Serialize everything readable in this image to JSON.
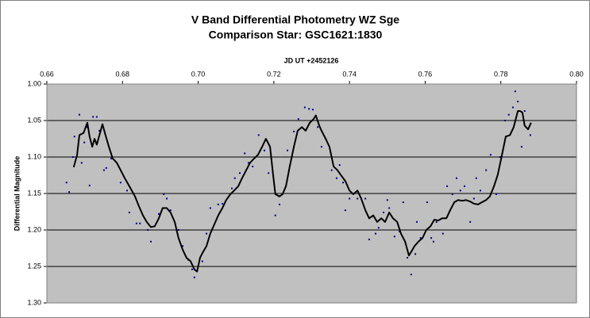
{
  "chart_data": {
    "type": "scatter",
    "title": "V Band Differential Photometry WZ Sge",
    "subtitle": "Comparison Star: GSC1621:1830",
    "x_label": "JD UT +2452126",
    "y_label": "Differential Magnitude",
    "xlim": [
      0.66,
      0.8
    ],
    "xticks": [
      0.66,
      0.68,
      {
        "value": 0.7,
        "label": "0.70"
      },
      0.72,
      0.74,
      0.76,
      0.78,
      {
        "value": 0.8,
        "label": "0.80"
      }
    ],
    "x_axis_position": "top",
    "ylim": [
      1.0,
      1.3
    ],
    "y_reversed": true,
    "yticks": [
      {
        "value": 1.0,
        "label": "1.00"
      },
      1.05,
      {
        "value": 1.1,
        "label": "1.10"
      },
      1.15,
      {
        "value": 1.2,
        "label": "1.20"
      },
      1.25,
      {
        "value": 1.3,
        "label": "1.30"
      }
    ],
    "grid": true,
    "plot_background": "#c0c0c0",
    "series": [
      {
        "mode": "markers",
        "color": "#000080",
        "x": [
          0.6652,
          0.6659,
          0.6669,
          0.6673,
          0.6686,
          0.6692,
          0.6699,
          0.6705,
          0.6713,
          0.6722,
          0.6732,
          0.6739,
          0.6751,
          0.6757,
          0.677,
          0.6795,
          0.6812,
          0.6818,
          0.6837,
          0.6846,
          0.6867,
          0.6875,
          0.6896,
          0.6909,
          0.6917,
          0.6927,
          0.6948,
          0.6959,
          0.6974,
          0.6984,
          0.699,
          0.7011,
          0.7022,
          0.7032,
          0.7053,
          0.7064,
          0.7089,
          0.7097,
          0.711,
          0.7123,
          0.7133,
          0.7144,
          0.716,
          0.7175,
          0.7186,
          0.7204,
          0.7215,
          0.7236,
          0.7253,
          0.7265,
          0.7282,
          0.7293,
          0.7303,
          0.7316,
          0.7326,
          0.7337,
          0.7353,
          0.7366,
          0.7374,
          0.7383,
          0.7389,
          0.74,
          0.7421,
          0.7442,
          0.7452,
          0.7469,
          0.7477,
          0.749,
          0.75,
          0.7505,
          0.7519,
          0.7532,
          0.7542,
          0.7553,
          0.7563,
          0.7574,
          0.7578,
          0.7588,
          0.7605,
          0.7616,
          0.7622,
          0.763,
          0.7647,
          0.7658,
          0.7666,
          0.7672,
          0.7683,
          0.7693,
          0.7704,
          0.7719,
          0.7729,
          0.7735,
          0.7746,
          0.7761,
          0.7773,
          0.7788,
          0.7798,
          0.7811,
          0.7821,
          0.7832,
          0.7838,
          0.7845,
          0.7855,
          0.7863,
          0.7878
        ],
        "values": [
          1.135,
          1.148,
          1.1,
          1.072,
          1.042,
          1.108,
          1.08,
          1.059,
          1.139,
          1.045,
          1.045,
          1.064,
          1.118,
          1.115,
          1.102,
          1.135,
          1.146,
          1.176,
          1.191,
          1.191,
          1.2,
          1.216,
          1.178,
          1.151,
          1.157,
          1.173,
          1.2,
          1.222,
          1.241,
          1.254,
          1.265,
          1.243,
          1.205,
          1.17,
          1.165,
          1.164,
          1.143,
          1.129,
          1.122,
          1.095,
          1.108,
          1.113,
          1.07,
          1.091,
          1.122,
          1.18,
          1.165,
          1.091,
          1.065,
          1.048,
          1.032,
          1.034,
          1.035,
          1.059,
          1.086,
          1.075,
          1.118,
          1.129,
          1.111,
          1.135,
          1.173,
          1.157,
          1.157,
          1.157,
          1.213,
          1.205,
          1.197,
          1.176,
          1.159,
          1.17,
          1.209,
          1.202,
          1.162,
          1.238,
          1.261,
          1.233,
          1.189,
          1.211,
          1.162,
          1.211,
          1.216,
          1.189,
          1.205,
          1.14,
          1.173,
          1.151,
          1.129,
          1.146,
          1.14,
          1.189,
          1.157,
          1.129,
          1.146,
          1.118,
          1.097,
          1.151,
          1.1,
          1.05,
          1.042,
          1.032,
          1.01,
          1.024,
          1.086,
          1.037,
          1.07
        ]
      },
      {
        "mode": "line",
        "color": "#000000",
        "x": [
          0.6671,
          0.668,
          0.6686,
          0.6697,
          0.6707,
          0.6713,
          0.672,
          0.6726,
          0.6732,
          0.6739,
          0.6747,
          0.6755,
          0.6764,
          0.6774,
          0.6785,
          0.6795,
          0.6806,
          0.6818,
          0.6833,
          0.6843,
          0.6854,
          0.6864,
          0.6875,
          0.6885,
          0.6896,
          0.6906,
          0.6917,
          0.6927,
          0.6938,
          0.6948,
          0.6959,
          0.6969,
          0.698,
          0.699,
          0.6997,
          0.7005,
          0.7013,
          0.7022,
          0.7032,
          0.7043,
          0.7053,
          0.7064,
          0.7074,
          0.7085,
          0.7095,
          0.7106,
          0.7116,
          0.7127,
          0.7137,
          0.7148,
          0.7158,
          0.7169,
          0.7179,
          0.719,
          0.7198,
          0.7204,
          0.7215,
          0.7223,
          0.7232,
          0.7242,
          0.7253,
          0.7263,
          0.7274,
          0.7284,
          0.7295,
          0.7305,
          0.7311,
          0.732,
          0.7326,
          0.7337,
          0.7347,
          0.7358,
          0.7368,
          0.7379,
          0.7389,
          0.74,
          0.741,
          0.7421,
          0.7431,
          0.7442,
          0.7452,
          0.7463,
          0.7473,
          0.7484,
          0.7494,
          0.7505,
          0.7515,
          0.7526,
          0.7536,
          0.7547,
          0.7557,
          0.7563,
          0.7572,
          0.7582,
          0.7593,
          0.7603,
          0.7614,
          0.7624,
          0.7635,
          0.7645,
          0.7656,
          0.7666,
          0.7677,
          0.7687,
          0.7698,
          0.7708,
          0.7719,
          0.7729,
          0.774,
          0.775,
          0.7761,
          0.7771,
          0.7782,
          0.7792,
          0.7803,
          0.7813,
          0.7824,
          0.7834,
          0.7845,
          0.7851,
          0.7857,
          0.7863,
          0.7872,
          0.788
        ],
        "values": [
          1.114,
          1.097,
          1.07,
          1.067,
          1.053,
          1.072,
          1.086,
          1.075,
          1.083,
          1.07,
          1.055,
          1.07,
          1.086,
          1.102,
          1.108,
          1.118,
          1.129,
          1.14,
          1.154,
          1.167,
          1.18,
          1.189,
          1.196,
          1.195,
          1.184,
          1.17,
          1.17,
          1.176,
          1.189,
          1.211,
          1.227,
          1.238,
          1.243,
          1.254,
          1.257,
          1.238,
          1.23,
          1.222,
          1.205,
          1.192,
          1.18,
          1.17,
          1.159,
          1.151,
          1.146,
          1.14,
          1.129,
          1.118,
          1.108,
          1.102,
          1.097,
          1.086,
          1.075,
          1.086,
          1.124,
          1.151,
          1.154,
          1.151,
          1.14,
          1.113,
          1.086,
          1.064,
          1.059,
          1.064,
          1.053,
          1.048,
          1.043,
          1.057,
          1.064,
          1.075,
          1.086,
          1.113,
          1.118,
          1.126,
          1.133,
          1.146,
          1.151,
          1.146,
          1.157,
          1.173,
          1.184,
          1.18,
          1.189,
          1.184,
          1.189,
          1.176,
          1.184,
          1.189,
          1.205,
          1.216,
          1.235,
          1.23,
          1.222,
          1.216,
          1.211,
          1.2,
          1.195,
          1.186,
          1.187,
          1.184,
          1.184,
          1.173,
          1.162,
          1.159,
          1.16,
          1.159,
          1.161,
          1.164,
          1.165,
          1.162,
          1.159,
          1.154,
          1.14,
          1.124,
          1.097,
          1.072,
          1.07,
          1.059,
          1.037,
          1.037,
          1.039,
          1.057,
          1.062,
          1.053
        ]
      }
    ]
  }
}
